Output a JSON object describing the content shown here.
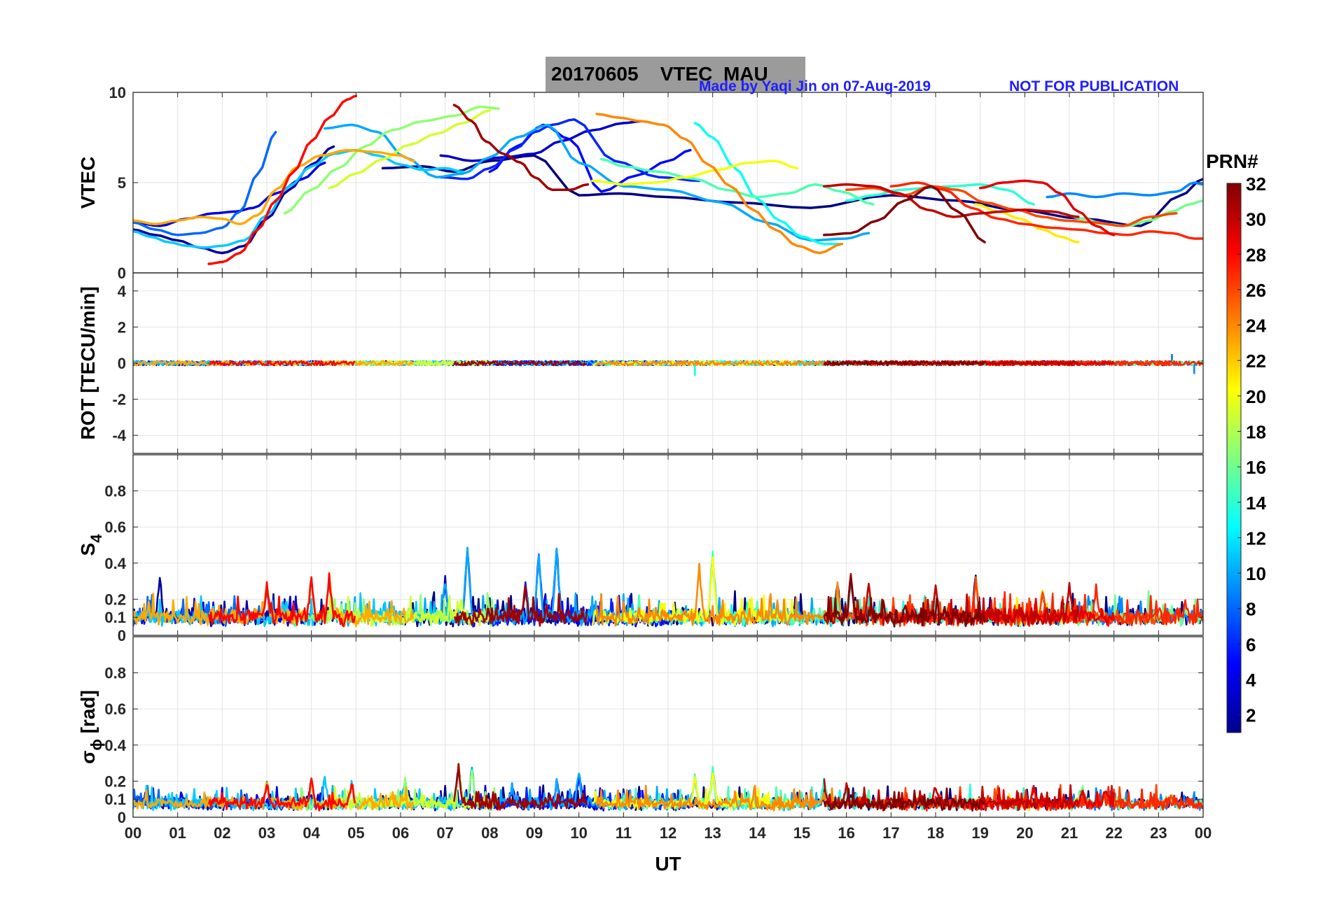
{
  "title": {
    "date": "20170605",
    "quantity": "VTEC",
    "station": "MAU"
  },
  "credit": "Made by Yaqi Jin on 07-Aug-2019",
  "notice": "NOT FOR PUBLICATION",
  "chart_data": {
    "type": "line",
    "xlabel": "UT",
    "xlim": [
      0,
      24
    ],
    "xticks": [
      "00",
      "01",
      "02",
      "03",
      "04",
      "05",
      "06",
      "07",
      "08",
      "09",
      "10",
      "11",
      "12",
      "13",
      "14",
      "15",
      "16",
      "17",
      "18",
      "19",
      "20",
      "21",
      "22",
      "23",
      "00"
    ],
    "grid": true,
    "colorbar": {
      "label": "PRN#",
      "range": [
        1,
        32
      ],
      "colormap": "jet",
      "ticks": [
        "2",
        "4",
        "6",
        "8",
        "10",
        "12",
        "14",
        "16",
        "18",
        "20",
        "22",
        "24",
        "26",
        "28",
        "30",
        "32"
      ]
    },
    "panels": [
      {
        "name": "vtec",
        "ylabel": "VTEC",
        "ylim": [
          0,
          10
        ],
        "yticks": [
          "0",
          "5",
          "10"
        ],
        "series": [
          {
            "prn": 1,
            "x": [
              5.6,
              6.5,
              7.2,
              8.0,
              9.0,
              10.0,
              10.9,
              12.0,
              13.5,
              15.2,
              17.0,
              18.5,
              19.8,
              21.3,
              22.6,
              23.5,
              24.0
            ],
            "y": [
              5.8,
              5.9,
              5.6,
              6.2,
              6.5,
              4.3,
              4.4,
              4.2,
              3.9,
              3.6,
              4.3,
              4.0,
              3.5,
              3.0,
              2.6,
              4.3,
              5.2
            ]
          },
          {
            "prn": 2,
            "x": [
              0.0,
              0.5,
              1.0,
              1.5,
              2.0,
              2.5,
              3.0,
              3.5,
              4.0,
              4.5
            ],
            "y": [
              2.4,
              2.1,
              1.8,
              1.4,
              1.1,
              1.5,
              3.0,
              4.6,
              6.0,
              7.0
            ]
          },
          {
            "prn": 3,
            "x": [
              6.9,
              7.6,
              8.3,
              9.0,
              9.6,
              10.3,
              11.0,
              11.4
            ],
            "y": [
              6.5,
              6.2,
              6.4,
              6.6,
              7.3,
              7.9,
              8.3,
              8.4
            ]
          },
          {
            "prn": 4,
            "x": [
              0.0,
              0.6,
              1.2,
              1.8,
              2.3,
              2.7,
              3.2,
              3.8,
              4.3
            ],
            "y": [
              2.8,
              2.6,
              3.0,
              3.3,
              3.4,
              3.6,
              4.4,
              5.2,
              6.1
            ]
          },
          {
            "prn": 5,
            "x": [
              8.0,
              8.6,
              9.2,
              9.8,
              10.5,
              11.3,
              12.0,
              12.5
            ],
            "y": [
              5.6,
              7.0,
              8.2,
              7.4,
              4.5,
              5.4,
              6.2,
              6.8
            ]
          },
          {
            "prn": 6,
            "x": [
              6.9,
              7.5,
              8.0,
              8.6,
              9.0,
              9.4,
              9.9,
              10.8,
              11.8,
              12.7
            ],
            "y": [
              5.3,
              5.2,
              5.8,
              6.9,
              7.8,
              8.2,
              8.5,
              6.2,
              5.3,
              5.1
            ]
          },
          {
            "prn": 8,
            "x": [
              0.0,
              0.5,
              1.0,
              1.5,
              2.0,
              2.4,
              2.8,
              3.2
            ],
            "y": [
              2.8,
              2.4,
              2.1,
              2.2,
              2.5,
              3.4,
              5.5,
              7.8
            ]
          },
          {
            "prn": 9,
            "x": [
              20.5,
              21.0,
              21.6,
              22.2,
              22.8,
              23.4,
              23.8,
              24.0
            ],
            "y": [
              4.2,
              4.4,
              4.2,
              4.4,
              4.3,
              4.5,
              5.0,
              4.9
            ]
          },
          {
            "prn": 10,
            "x": [
              4.3,
              4.9,
              5.5,
              6.1,
              6.8,
              7.4,
              8.0,
              8.6,
              9.3,
              10.0,
              11.0,
              12.0,
              13.2,
              14.2,
              15.2,
              16.0,
              16.5
            ],
            "y": [
              8.0,
              8.2,
              7.8,
              6.4,
              5.3,
              5.5,
              6.4,
              7.5,
              8.2,
              6.1,
              4.8,
              4.6,
              3.9,
              2.8,
              1.8,
              1.9,
              2.2
            ]
          },
          {
            "prn": 11,
            "x": [
              0.0,
              0.4,
              0.8,
              1.2,
              1.6,
              2.0,
              2.5,
              3.0,
              3.5,
              4.0,
              4.5,
              5.0,
              5.5,
              6.0,
              6.5,
              7.0,
              7.4
            ],
            "y": [
              2.3,
              2.0,
              1.7,
              1.5,
              1.4,
              1.5,
              1.8,
              3.2,
              4.8,
              5.9,
              6.6,
              6.8,
              6.5,
              6.0,
              5.7,
              5.8,
              5.6
            ]
          },
          {
            "prn": 13,
            "x": [
              12.6,
              13.0,
              13.5,
              14.0,
              14.5,
              15.0,
              15.5,
              15.9
            ],
            "y": [
              8.3,
              7.5,
              5.8,
              4.1,
              2.9,
              2.0,
              1.6,
              1.6
            ]
          },
          {
            "prn": 14,
            "x": [
              16.0,
              16.6,
              17.2,
              17.8,
              18.4,
              19.0,
              19.6,
              20.2
            ],
            "y": [
              4.0,
              4.3,
              4.6,
              4.7,
              4.8,
              4.9,
              4.6,
              3.8
            ]
          },
          {
            "prn": 15,
            "x": [
              10.5,
              11.0,
              11.8,
              12.6,
              13.3,
              14.0,
              14.7,
              15.3,
              15.9,
              16.6
            ],
            "y": [
              6.3,
              5.9,
              5.6,
              5.2,
              4.6,
              4.2,
              4.4,
              4.9,
              4.5,
              3.8
            ]
          },
          {
            "prn": 16,
            "x": [
              20.8,
              21.3,
              21.8,
              22.3,
              22.8,
              23.3,
              23.7,
              24.0
            ],
            "y": [
              3.3,
              3.0,
              2.7,
              2.6,
              2.9,
              3.4,
              3.8,
              4.0
            ]
          },
          {
            "prn": 17,
            "x": [
              3.4,
              4.0,
              4.6,
              5.2,
              5.8,
              6.5,
              7.2,
              7.8,
              8.2
            ],
            "y": [
              3.3,
              4.6,
              5.8,
              7.0,
              7.9,
              8.4,
              8.7,
              9.2,
              9.1
            ]
          },
          {
            "prn": 19,
            "x": [
              4.4,
              5.0,
              5.6,
              6.2,
              6.8,
              7.4,
              8.0
            ],
            "y": [
              4.7,
              5.5,
              6.3,
              7.1,
              7.7,
              8.3,
              9.0
            ]
          },
          {
            "prn": 20,
            "x": [
              10.3,
              11.0,
              11.7,
              12.4,
              13.1,
              13.8,
              14.4,
              14.9
            ],
            "y": [
              5.1,
              4.9,
              5.0,
              5.3,
              5.7,
              6.1,
              6.2,
              5.8
            ]
          },
          {
            "prn": 21,
            "x": [
              18.9,
              19.4,
              19.9,
              20.4,
              20.8,
              21.2
            ],
            "y": [
              3.8,
              3.4,
              3.0,
              2.4,
              2.0,
              1.7
            ]
          },
          {
            "prn": 23,
            "x": [
              0.0,
              0.5,
              1.0,
              1.5,
              2.0,
              2.4,
              2.8,
              3.2,
              3.7,
              4.2,
              4.8,
              5.4,
              6.0,
              6.3
            ],
            "y": [
              2.9,
              2.7,
              2.9,
              3.1,
              3.0,
              2.7,
              3.2,
              4.6,
              5.9,
              6.5,
              6.8,
              6.7,
              6.5,
              6.2
            ]
          },
          {
            "prn": 24,
            "x": [
              10.4,
              10.9,
              11.4,
              11.9,
              12.4,
              12.9,
              13.4,
              13.9,
              14.4,
              14.9,
              15.4,
              15.9
            ],
            "y": [
              8.8,
              8.6,
              8.4,
              8.2,
              7.4,
              6.0,
              4.8,
              3.5,
              2.4,
              1.5,
              1.1,
              1.6
            ]
          },
          {
            "prn": 26,
            "x": [
              16.0,
              16.6,
              17.3,
              17.9,
              18.5,
              19.1,
              19.8,
              20.4,
              20.9,
              21.5,
              22.2,
              22.8,
              23.4
            ],
            "y": [
              4.6,
              4.7,
              4.3,
              4.8,
              4.6,
              3.9,
              3.5,
              3.1,
              2.9,
              2.8,
              2.6,
              3.1,
              3.3
            ]
          },
          {
            "prn": 27,
            "x": [
              17.0,
              17.6,
              18.2,
              18.8,
              19.4,
              20.0,
              20.6,
              21.2,
              21.8,
              22.3,
              22.8,
              23.3,
              23.8,
              24.0
            ],
            "y": [
              4.8,
              5.0,
              4.6,
              3.6,
              3.0,
              2.7,
              2.5,
              2.4,
              2.2,
              2.1,
              2.3,
              2.2,
              1.9,
              1.9
            ]
          },
          {
            "prn": 28,
            "x": [
              1.7,
              2.0,
              2.4,
              2.8,
              3.2,
              3.6,
              4.0,
              4.4,
              4.8,
              5.0
            ],
            "y": [
              0.5,
              0.6,
              1.1,
              2.4,
              4.0,
              5.6,
              7.3,
              8.6,
              9.6,
              9.8
            ]
          },
          {
            "prn": 29,
            "x": [
              19.0,
              19.5,
              20.0,
              20.4,
              20.8,
              21.2,
              21.6,
              22.0
            ],
            "y": [
              4.7,
              5.0,
              5.1,
              5.0,
              4.4,
              3.4,
              2.6,
              2.1
            ]
          },
          {
            "prn": 30,
            "x": [
              15.5,
              16.0,
              16.6,
              17.2,
              17.8,
              18.4,
              19.0,
              19.5,
              20.0,
              20.6,
              21.2
            ],
            "y": [
              4.8,
              4.9,
              4.8,
              4.4,
              3.5,
              3.1,
              3.3,
              3.4,
              3.5,
              3.4,
              3.1
            ]
          },
          {
            "prn": 31,
            "x": [
              7.2,
              7.6,
              7.9,
              8.3,
              8.7,
              9.0,
              9.4,
              9.8,
              10.2
            ],
            "y": [
              9.3,
              8.4,
              7.3,
              6.6,
              6.1,
              5.3,
              4.6,
              4.6,
              4.9
            ]
          },
          {
            "prn": 32,
            "x": [
              15.5,
              16.1,
              16.7,
              17.3,
              17.9,
              18.5,
              19.1
            ],
            "y": [
              2.1,
              2.2,
              2.9,
              4.0,
              4.8,
              3.4,
              1.7
            ]
          }
        ]
      },
      {
        "name": "rot",
        "ylabel": "ROT [TECU/min]",
        "ylim": [
          -5,
          5
        ],
        "yticks": [
          "-4",
          "-2",
          "0",
          "2",
          "4"
        ],
        "noise_amplitude": 0.12,
        "spikes": [
          [
            12.6,
            -0.7
          ],
          [
            23.3,
            0.5
          ],
          [
            23.8,
            -0.6
          ]
        ]
      },
      {
        "name": "s4",
        "ylabel": "S",
        "ylabel_sub": "4",
        "ylim": [
          0,
          1
        ],
        "yticks": [
          "0",
          "0.1",
          "0.2",
          "0.4",
          "0.6",
          "0.8"
        ],
        "baseline": 0.08,
        "noise_amplitude": 0.07,
        "spikes": [
          [
            0.6,
            0.35
          ],
          [
            3.0,
            0.3
          ],
          [
            4.0,
            0.35
          ],
          [
            4.4,
            0.35
          ],
          [
            7.0,
            0.33
          ],
          [
            7.5,
            0.52
          ],
          [
            8.8,
            0.3
          ],
          [
            9.1,
            0.47
          ],
          [
            9.5,
            0.52
          ],
          [
            10.2,
            0.2
          ],
          [
            12.7,
            0.4
          ],
          [
            13.0,
            0.47
          ],
          [
            15.8,
            0.3
          ],
          [
            16.1,
            0.35
          ],
          [
            16.5,
            0.3
          ],
          [
            18.0,
            0.28
          ],
          [
            18.9,
            0.35
          ],
          [
            20.4,
            0.28
          ],
          [
            21.0,
            0.3
          ],
          [
            21.6,
            0.3
          ],
          [
            23.6,
            0.22
          ]
        ]
      },
      {
        "name": "sigma_phi",
        "ylabel": "σ",
        "ylabel_sub": "ϕ",
        "ylabel_unit": "[rad]",
        "ylim": [
          0,
          1
        ],
        "yticks": [
          "0",
          "0.1",
          "0.2",
          "0.4",
          "0.6",
          "0.8"
        ],
        "baseline": 0.06,
        "noise_amplitude": 0.05,
        "spikes": [
          [
            3.0,
            0.22
          ],
          [
            4.0,
            0.22
          ],
          [
            4.3,
            0.25
          ],
          [
            4.9,
            0.22
          ],
          [
            6.1,
            0.22
          ],
          [
            7.3,
            0.3
          ],
          [
            7.6,
            0.3
          ],
          [
            8.5,
            0.2
          ],
          [
            9.5,
            0.22
          ],
          [
            10.0,
            0.27
          ],
          [
            12.6,
            0.25
          ],
          [
            13.0,
            0.28
          ],
          [
            15.5,
            0.22
          ],
          [
            16.0,
            0.2
          ],
          [
            18.0,
            0.2
          ],
          [
            19.4,
            0.18
          ],
          [
            20.2,
            0.2
          ],
          [
            21.3,
            0.18
          ],
          [
            21.8,
            0.17
          ],
          [
            23.3,
            0.15
          ]
        ]
      }
    ]
  }
}
